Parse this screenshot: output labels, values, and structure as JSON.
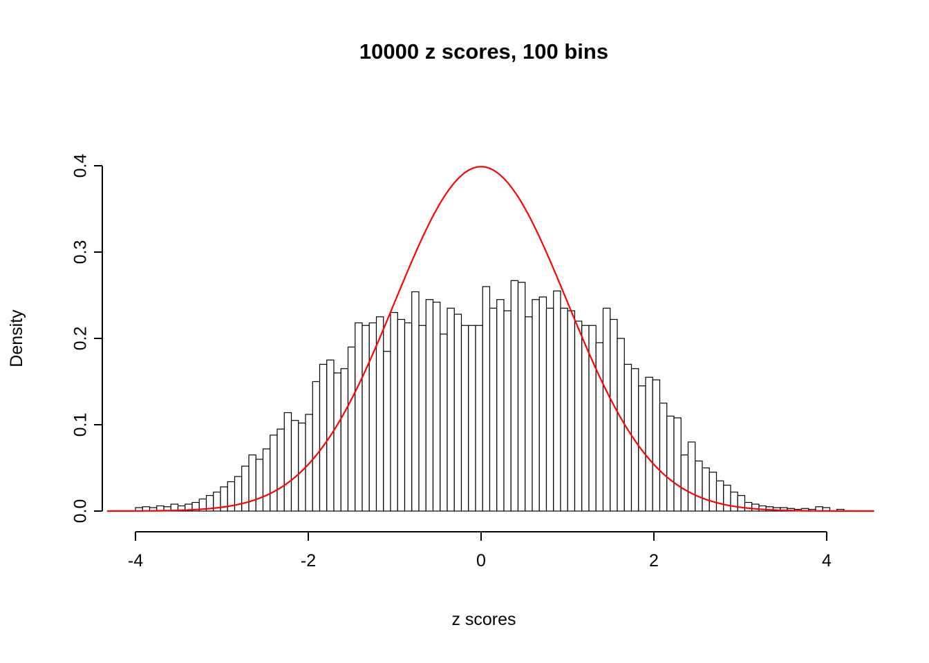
{
  "chart_data": {
    "type": "bar",
    "variant": "histogram-with-density-curve",
    "title": "10000 z scores, 100 bins",
    "xlabel": "z scores",
    "ylabel": "Density",
    "xlim": [
      -4.4,
      4.55
    ],
    "ylim": [
      0,
      0.4
    ],
    "x_ticks": [
      -4,
      -2,
      0,
      2,
      4
    ],
    "x_tick_labels": [
      "-4",
      "-2",
      "0",
      "2",
      "4"
    ],
    "y_ticks": [
      0.0,
      0.1,
      0.2,
      0.3,
      0.4
    ],
    "y_tick_labels": [
      "0.0",
      "0.1",
      "0.2",
      "0.3",
      "0.4"
    ],
    "grid": false,
    "legend": false,
    "bar_fill": "#ffffff",
    "bar_stroke": "#000000",
    "bins": {
      "start": -4.0,
      "width": 0.082,
      "count": 100
    },
    "densities": [
      0.004,
      0.005,
      0.004,
      0.006,
      0.005,
      0.008,
      0.006,
      0.008,
      0.01,
      0.014,
      0.018,
      0.022,
      0.028,
      0.034,
      0.04,
      0.052,
      0.065,
      0.06,
      0.072,
      0.088,
      0.095,
      0.114,
      0.105,
      0.102,
      0.112,
      0.15,
      0.17,
      0.175,
      0.16,
      0.165,
      0.19,
      0.218,
      0.215,
      0.218,
      0.225,
      0.185,
      0.23,
      0.222,
      0.218,
      0.254,
      0.215,
      0.245,
      0.242,
      0.205,
      0.235,
      0.228,
      0.215,
      0.215,
      0.215,
      0.26,
      0.235,
      0.245,
      0.232,
      0.267,
      0.265,
      0.225,
      0.245,
      0.248,
      0.235,
      0.255,
      0.235,
      0.232,
      0.22,
      0.215,
      0.215,
      0.195,
      0.235,
      0.222,
      0.2,
      0.17,
      0.165,
      0.145,
      0.155,
      0.152,
      0.125,
      0.11,
      0.108,
      0.065,
      0.08,
      0.058,
      0.05,
      0.045,
      0.035,
      0.03,
      0.022,
      0.018,
      0.01,
      0.008,
      0.006,
      0.005,
      0.004,
      0.004,
      0.003,
      0.002,
      0.003,
      0.002,
      0.005,
      0.004,
      0.0,
      0.002
    ],
    "overlay_curve": {
      "name": "standard normal density",
      "formula": "dnorm(x) = exp(-x^2/2)/sqrt(2*pi)",
      "color": "#ff0000",
      "peak_density": 0.3989,
      "x_range": [
        -4.33,
        4.55
      ]
    }
  }
}
